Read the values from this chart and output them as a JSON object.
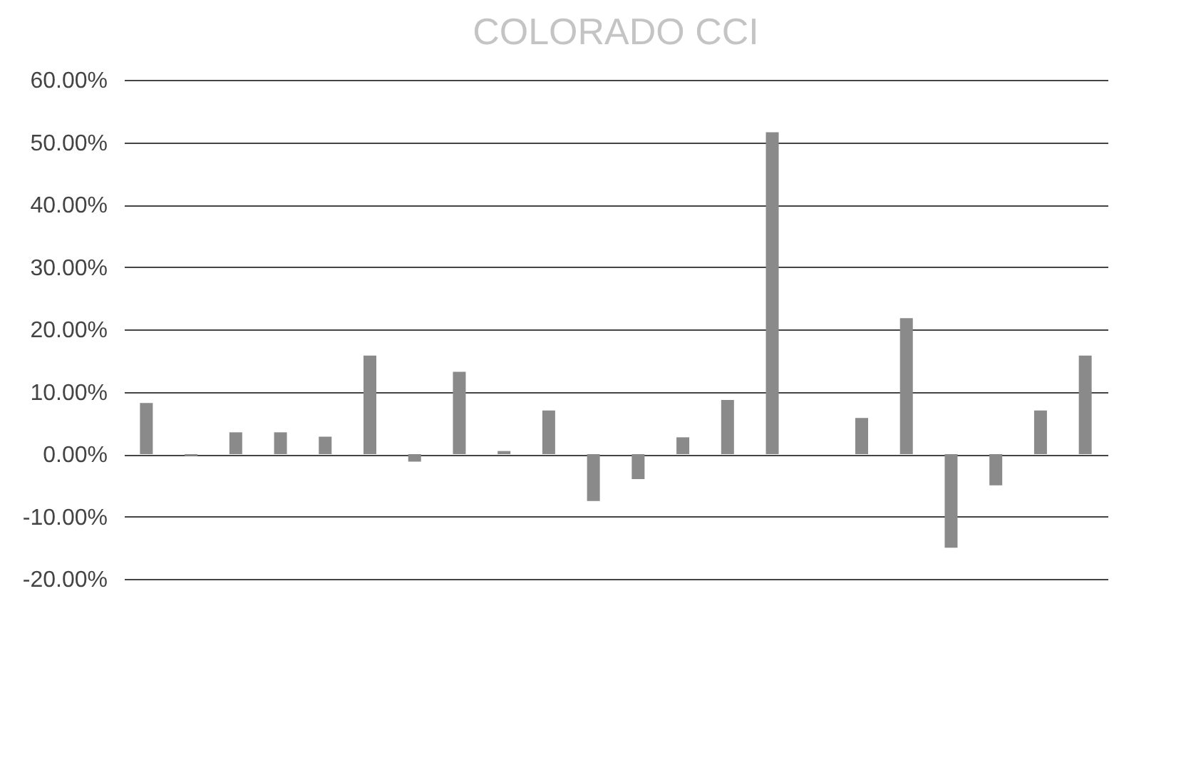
{
  "chart_data": {
    "type": "bar",
    "title": "COLORADO CCI",
    "categories": [
      null,
      null,
      null,
      null,
      null,
      null,
      null,
      null,
      null,
      null,
      null,
      null,
      null,
      null,
      null,
      null,
      null,
      null,
      null,
      null,
      null,
      null
    ],
    "series": [
      {
        "color": "#8a8a8a",
        "values": [
          8.2,
          -0.3,
          3.5,
          3.5,
          2.8,
          15.8,
          -1.2,
          13.2,
          0.5,
          7.0,
          -7.5,
          -4.0,
          2.7,
          8.7,
          51.6,
          null,
          5.8,
          21.8,
          -15.0,
          -5.0,
          7.0,
          15.8
        ]
      }
    ],
    "ylim": [
      -20,
      60
    ],
    "yticks": [
      {
        "value": -20,
        "label": "-20.00%"
      },
      {
        "value": -10,
        "label": "-10.00%"
      },
      {
        "value": 0,
        "label": "0.00%"
      },
      {
        "value": 10,
        "label": "10.00%"
      },
      {
        "value": 20,
        "label": "20.00%"
      },
      {
        "value": 30,
        "label": "30.00%"
      },
      {
        "value": 40,
        "label": "40.00%"
      },
      {
        "value": 50,
        "label": "50.00%"
      },
      {
        "value": 60,
        "label": "60.00%"
      }
    ],
    "grid": "y",
    "legend": false,
    "tick_labels": "y"
  }
}
